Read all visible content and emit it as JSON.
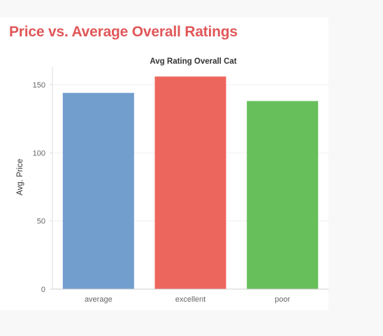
{
  "dashboard": {
    "title": "Price vs. Average Overall Ratings"
  },
  "chart_data": {
    "type": "bar",
    "column_header": "Avg Rating Overall Cat",
    "categories": [
      "average",
      "excellent",
      "poor"
    ],
    "values": [
      144,
      156,
      138
    ],
    "xlabel": "",
    "ylabel": "Avg. Price",
    "ylim": [
      0,
      160
    ],
    "yticks": [
      0,
      50,
      100,
      150
    ],
    "grid": true,
    "legend": "none",
    "colors": [
      "#729ece",
      "#ed665d",
      "#67bf5c"
    ]
  }
}
